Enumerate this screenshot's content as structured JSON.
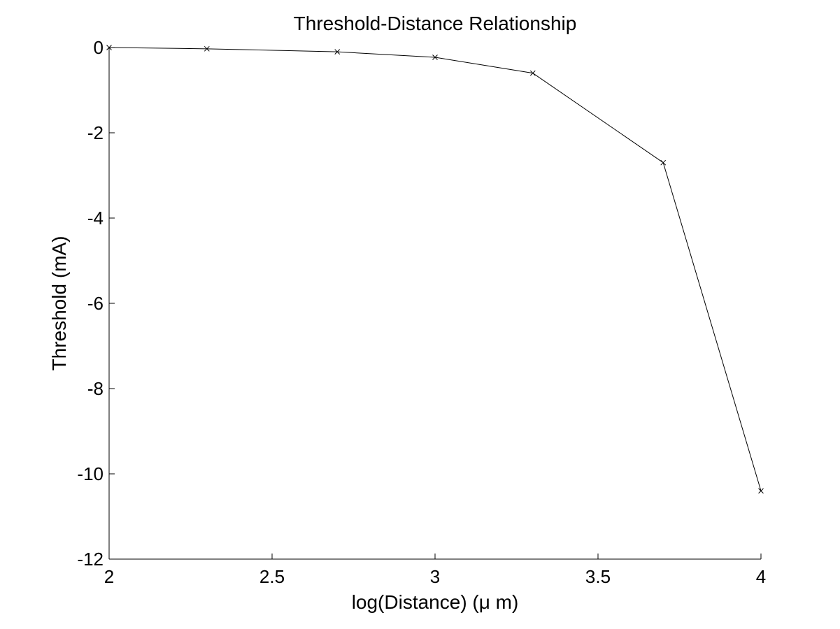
{
  "chart_data": {
    "type": "line",
    "title": "Threshold-Distance Relationship",
    "xlabel": "log(Distance) (μ m)",
    "ylabel": "Threshold (mA)",
    "xlim": [
      2,
      4
    ],
    "ylim": [
      -12,
      0
    ],
    "xticks": [
      2,
      2.5,
      3,
      3.5,
      4
    ],
    "xtick_labels": [
      "2",
      "2.5",
      "3",
      "3.5",
      "4"
    ],
    "yticks": [
      0,
      -2,
      -4,
      -6,
      -8,
      -10,
      -12
    ],
    "ytick_labels": [
      "0",
      "-2",
      "-4",
      "-6",
      "-8",
      "-10",
      "-12"
    ],
    "grid": false,
    "series": [
      {
        "x": [
          2,
          2.3,
          2.7,
          3,
          3.3,
          3.7,
          4
        ],
        "y": [
          0,
          -0.03,
          -0.1,
          -0.23,
          -0.6,
          -2.7,
          -10.4
        ],
        "marker": "x",
        "color": "#000000"
      }
    ]
  }
}
